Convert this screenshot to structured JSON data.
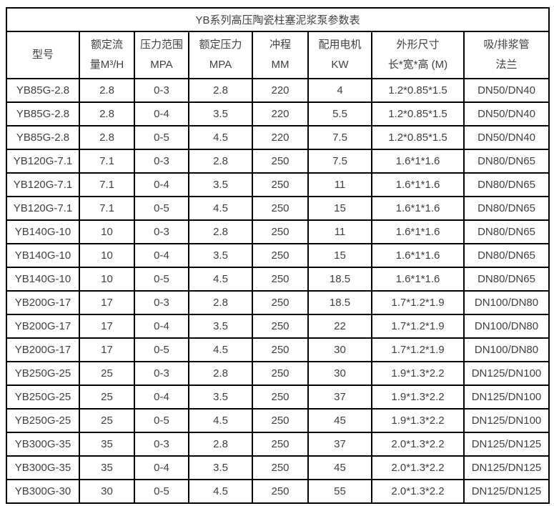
{
  "colors": {
    "background": "#ffffff",
    "border": "#000000",
    "text": "#404040"
  },
  "table": {
    "title": "YB系列高压陶瓷柱塞泥浆泵参数表",
    "headers": [
      {
        "line1": "型号",
        "line2": ""
      },
      {
        "line1": "额定流",
        "line2": "量M³/H"
      },
      {
        "line1": "压力范围",
        "line2": "MPA"
      },
      {
        "line1": "额定压力",
        "line2": "MPA"
      },
      {
        "line1": "冲程",
        "line2": "MM"
      },
      {
        "line1": "配用电机",
        "line2": "KW"
      },
      {
        "line1": "外形尺寸",
        "line2": "长*宽*高 (M)"
      },
      {
        "line1": "吸/排浆管",
        "line2": "法兰"
      }
    ],
    "rows": [
      [
        "YB85G-2.8",
        "2.8",
        "0-3",
        "2.8",
        "220",
        "4",
        "1.2*0.85*1.5",
        "DN50/DN40"
      ],
      [
        "YB85G-2.8",
        "2.8",
        "0-4",
        "3.5",
        "220",
        "5.5",
        "1.2*0.85*1.5",
        "DN50/DN40"
      ],
      [
        "YB85G-2.8",
        "2.8",
        "0-5",
        "4.5",
        "220",
        "7.5",
        "1.2*0.85*1.5",
        "DN50/DN40"
      ],
      [
        "YB120G-7.1",
        "7.1",
        "0-3",
        "2.8",
        "250",
        "7.5",
        "1.6*1*1.6",
        "DN80/DN65"
      ],
      [
        "YB120G-7.1",
        "7.1",
        "0-4",
        "3.5",
        "250",
        "11",
        "1.6*1*1.6",
        "DN80/DN65"
      ],
      [
        "YB120G-7.1",
        "7.1",
        "0-5",
        "4.5",
        "250",
        "15",
        "1.6*1*1.6",
        "DN80/DN65"
      ],
      [
        "YB140G-10",
        "10",
        "0-3",
        "2.8",
        "250",
        "11",
        "1.6*1*1.6",
        "DN80/DN65"
      ],
      [
        "YB140G-10",
        "10",
        "0-4",
        "3.5",
        "250",
        "15",
        "1.6*1*1.6",
        "DN80/DN65"
      ],
      [
        "YB140G-10",
        "10",
        "0-5",
        "4.5",
        "250",
        "18.5",
        "1.6*1*1.6",
        "DN80/DN65"
      ],
      [
        "YB200G-17",
        "17",
        "0-3",
        "2.8",
        "250",
        "18.5",
        "1.7*1.2*1.9",
        "DN100/DN80"
      ],
      [
        "YB200G-17",
        "17",
        "0-4",
        "3.5",
        "250",
        "22",
        "1.7*1.2*1.9",
        "DN100/DN80"
      ],
      [
        "YB200G-17",
        "17",
        "0-5",
        "4.5",
        "250",
        "30",
        "1.7*1.2*1.9",
        "DN100/DN80"
      ],
      [
        "YB250G-25",
        "25",
        "0-3",
        "2.8",
        "250",
        "30",
        "1.9*1.3*2.2",
        "DN125/DN100"
      ],
      [
        "YB250G-25",
        "25",
        "0-4",
        "3.5",
        "250",
        "37",
        "1.9*1.3*2.2",
        "DN125/DN100"
      ],
      [
        "YB250G-25",
        "25",
        "0-5",
        "4.5",
        "250",
        "45",
        "1.9*1.3*2.2",
        "DN125/DN100"
      ],
      [
        "YB300G-35",
        "35",
        "0-3",
        "2.8",
        "250",
        "37",
        "2.0*1.3*2.2",
        "DN125/DN125"
      ],
      [
        "YB300G-35",
        "35",
        "0-4",
        "3.5",
        "250",
        "45",
        "2.0*1.3*2.2",
        "DN125/DN125"
      ],
      [
        "YB300G-30",
        "30",
        "0-5",
        "4.5",
        "250",
        "55",
        "2.0*1.3*2.2",
        "DN125/DN125"
      ]
    ]
  }
}
